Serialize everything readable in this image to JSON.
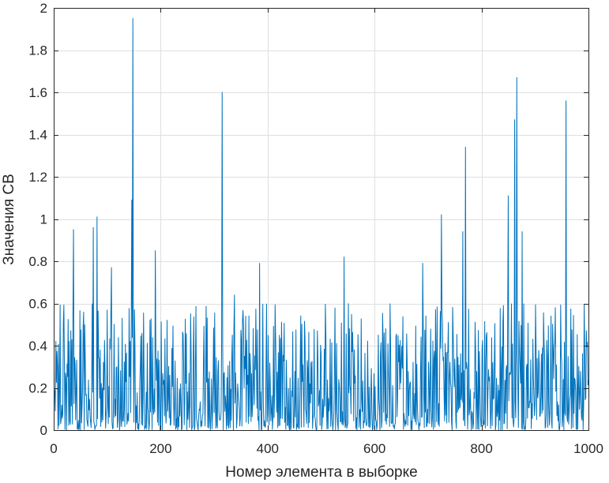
{
  "chart_data": {
    "type": "line",
    "title": "",
    "xlabel": "Номер элемента в выборке",
    "ylabel": "Значения СВ",
    "xlim": [
      0,
      1000
    ],
    "ylim": [
      0,
      2
    ],
    "grid": true,
    "x_ticks": [
      0,
      200,
      400,
      600,
      800,
      1000
    ],
    "y_ticks": [
      0,
      0.2,
      0.4,
      0.6,
      0.8,
      1,
      1.2,
      1.4,
      1.6,
      1.8,
      2
    ],
    "x_tick_labels": [
      "0",
      "200",
      "400",
      "600",
      "800",
      "1000"
    ],
    "y_tick_labels": [
      "0",
      "0.2",
      "0.4",
      "0.6",
      "0.8",
      "1",
      "1.2",
      "1.4",
      "1.6",
      "1.8",
      "2"
    ],
    "series": [
      {
        "color": "#0072bd",
        "n_points": 1000,
        "typical_range": [
          0,
          0.6
        ],
        "peaks": [
          [
            37,
            0.95
          ],
          [
            74,
            0.96
          ],
          [
            81,
            1.01
          ],
          [
            108,
            0.77
          ],
          [
            146,
            1.09
          ],
          [
            148,
            1.95
          ],
          [
            190,
            0.85
          ],
          [
            315,
            1.6
          ],
          [
            338,
            0.64
          ],
          [
            385,
            0.79
          ],
          [
            543,
            0.82
          ],
          [
            690,
            0.79
          ],
          [
            725,
            1.02
          ],
          [
            765,
            0.94
          ],
          [
            770,
            1.34
          ],
          [
            850,
            1.11
          ],
          [
            862,
            1.47
          ],
          [
            866,
            1.67
          ],
          [
            876,
            0.94
          ],
          [
            958,
            1.56
          ]
        ]
      }
    ]
  }
}
